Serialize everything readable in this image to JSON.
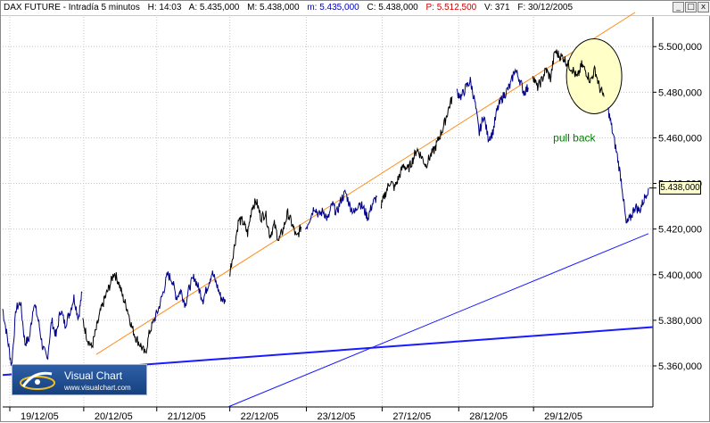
{
  "header": {
    "instrument": "DAX FUTURE - Intradía 5 minutos",
    "hour": "H: 14:03",
    "open": "A: 5.435,000",
    "max": "M: 5.438,000",
    "min": "m: 5.435,000",
    "close": "C: 5.438,000",
    "pivot": "P: 5.512,500",
    "volume": "V: 371",
    "date": "F: 30/12/2005"
  },
  "window_buttons": [
    "_",
    "□",
    "x"
  ],
  "logo": {
    "title": "Visual Chart",
    "url": "www.visualchart.com"
  },
  "colors": {
    "price_blue": "#00008b",
    "price_black": "#000000",
    "trend_orange": "#ff8c1a",
    "trend_blue": "#1a1aff",
    "highlight_fill": "#ffffc8",
    "annotation_green": "#008000",
    "grid": "#c8c8c8"
  },
  "chart_data": {
    "type": "line",
    "title": "DAX FUTURE - Intradía 5 minutos",
    "xlabel": "",
    "ylabel": "",
    "ylim": [
      5342000,
      5513000
    ],
    "grid": true,
    "date_ticks": [
      "19/12/05",
      "20/12/05",
      "21/12/05",
      "22/12/05",
      "23/12/05",
      "27/12/05",
      "28/12/05",
      "29/12/05"
    ],
    "y_ticks": [
      5360000,
      5380000,
      5400000,
      5420000,
      5440000,
      5460000,
      5480000,
      5500000
    ],
    "y_tick_labels": [
      "5.360,000",
      "5.380,000",
      "5.400,000",
      "5.420,000",
      "5.440,000",
      "5.460,000",
      "5.480,000",
      "5.500,000"
    ],
    "last_price": 5438000,
    "last_price_label": "5.438,000",
    "annotation": "pull back",
    "series": [
      {
        "x": [
          0,
          0.5,
          1.0,
          1.5,
          2.0,
          2.5,
          3.0,
          3.5,
          4.0,
          4.5,
          5.0,
          5.5,
          6.0,
          6.5,
          7.0,
          7.5,
          8.0,
          8.5,
          8.9
        ],
        "y": [
          5385000,
          5373000,
          5360000,
          5385000,
          5388000,
          5370000,
          5372000,
          5388000,
          5380000,
          5368000,
          5363000,
          5380000,
          5373000,
          5385000,
          5378000,
          5383000,
          5390000,
          5381000,
          5392000
        ]
      },
      {
        "x": [
          9.0,
          9.5,
          10.0,
          10.5,
          11.0,
          11.5,
          12.0,
          12.5,
          13.0,
          13.5,
          14.0,
          14.5,
          15.0,
          15.5,
          16.0,
          16.5,
          17.0
        ],
        "y": [
          5380000,
          5372000,
          5368000,
          5376000,
          5384000,
          5390000,
          5395000,
          5401000,
          5397000,
          5390000,
          5385000,
          5377000,
          5372000,
          5369000,
          5365000,
          5375000,
          5380000
        ]
      },
      {
        "x": [
          17.0,
          17.5,
          18.0,
          18.5,
          19.0,
          19.5,
          20.0,
          20.5,
          21.0,
          21.5,
          22.0,
          22.5,
          23.0,
          23.5,
          24.0,
          24.5,
          25.0
        ],
        "y": [
          5380000,
          5385000,
          5392000,
          5400000,
          5398000,
          5390000,
          5393000,
          5387000,
          5395000,
          5399000,
          5394000,
          5389000,
          5395000,
          5401000,
          5396000,
          5390000,
          5388000
        ]
      },
      {
        "x": [
          25.5,
          26.0,
          26.5,
          27.0,
          27.5,
          28.0,
          28.5,
          29.0,
          29.5,
          30.0,
          30.5,
          31.0,
          31.5,
          32.0,
          32.5,
          33.0,
          33.5
        ],
        "y": [
          5401000,
          5412000,
          5424000,
          5423000,
          5418000,
          5430000,
          5432000,
          5425000,
          5427000,
          5417000,
          5422000,
          5415000,
          5420000,
          5427000,
          5422000,
          5416000,
          5421000
        ]
      },
      {
        "x": [
          34.0,
          34.5,
          35.0,
          35.5,
          36.0,
          36.5,
          37.0,
          37.5,
          38.0,
          38.5,
          39.0,
          39.5,
          40.0,
          40.5,
          41.0,
          41.5,
          42.0
        ],
        "y": [
          5420000,
          5425000,
          5430000,
          5426000,
          5428000,
          5424000,
          5431000,
          5427000,
          5433000,
          5436000,
          5430000,
          5427000,
          5432000,
          5429000,
          5425000,
          5431000,
          5434000
        ]
      },
      {
        "x": [
          42.5,
          43.0,
          43.5,
          44.0,
          44.5,
          45.0,
          45.5,
          46.0,
          46.5,
          47.0,
          47.5,
          48.0,
          48.5,
          49.0,
          49.5,
          50.0,
          50.5
        ],
        "y": [
          5430000,
          5436000,
          5441000,
          5438000,
          5443000,
          5448000,
          5446000,
          5450000,
          5455000,
          5452000,
          5448000,
          5452000,
          5455000,
          5460000,
          5465000,
          5472000,
          5478000
        ]
      },
      {
        "x": [
          51.0,
          51.5,
          52.0,
          52.5,
          53.0,
          53.5,
          54.0,
          54.5,
          55.0,
          55.5,
          56.0,
          56.5,
          57.0,
          57.5,
          58.0,
          58.5,
          59.0
        ],
        "y": [
          5480000,
          5478000,
          5482000,
          5485000,
          5476000,
          5462000,
          5470000,
          5460000,
          5462000,
          5472000,
          5477000,
          5480000,
          5483000,
          5490000,
          5486000,
          5480000,
          5482000
        ]
      },
      {
        "x": [
          59.5,
          60.0,
          60.5,
          61.0,
          61.5,
          62.0,
          62.5,
          63.0,
          63.5,
          64.0,
          64.5,
          65.0,
          65.5,
          66.0,
          66.5,
          67.0,
          67.5
        ],
        "y": [
          5488000,
          5482000,
          5485000,
          5490000,
          5486000,
          5498000,
          5496000,
          5495000,
          5492000,
          5490000,
          5486000,
          5492000,
          5489000,
          5485000,
          5490000,
          5482000,
          5478000
        ]
      },
      {
        "x": [
          68.0,
          68.5,
          69.0,
          69.5,
          70.0,
          70.5,
          71.0,
          71.5,
          72.0,
          72.5
        ],
        "y": [
          5472000,
          5462000,
          5452000,
          5440000,
          5422000,
          5425000,
          5430000,
          5428000,
          5433000,
          5438000
        ]
      }
    ]
  }
}
